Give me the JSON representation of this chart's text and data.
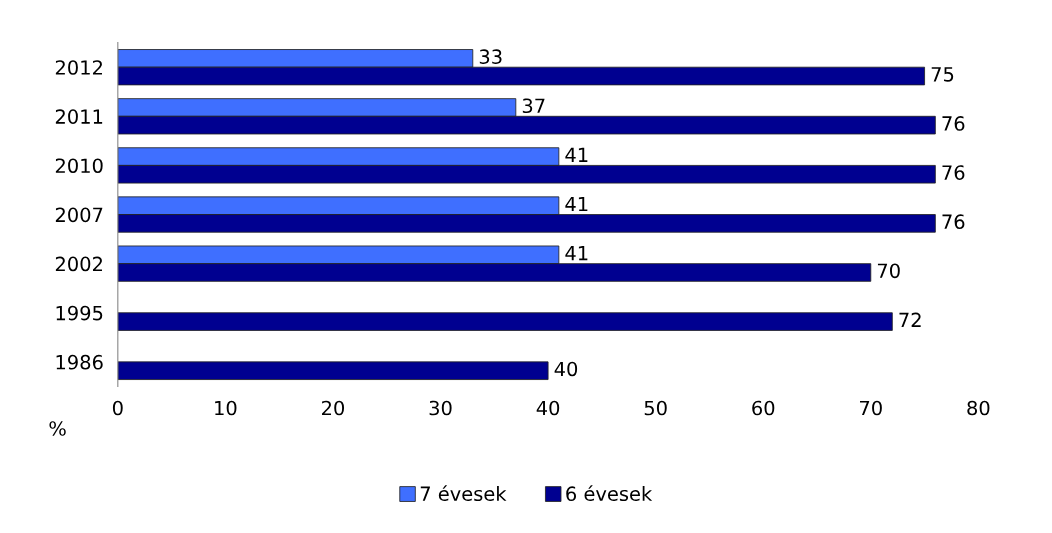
{
  "chart_data": {
    "type": "bar",
    "orientation": "horizontal",
    "xlabel": "%",
    "categories": [
      "2012",
      "2011",
      "2010",
      "2007",
      "2002",
      "1995",
      "1986"
    ],
    "series": [
      {
        "name": "7 évesek",
        "color": "#3f6fff",
        "values": [
          33,
          37,
          41,
          41,
          41,
          null,
          null
        ]
      },
      {
        "name": "6 évesek",
        "color": "#000090",
        "values": [
          75,
          76,
          76,
          76,
          70,
          72,
          40
        ]
      }
    ],
    "xlim": [
      0,
      80
    ],
    "xticks": [
      0,
      10,
      20,
      30,
      40,
      50,
      60,
      70,
      80
    ],
    "data_labels": true,
    "grid": false,
    "legend": "bottom"
  }
}
